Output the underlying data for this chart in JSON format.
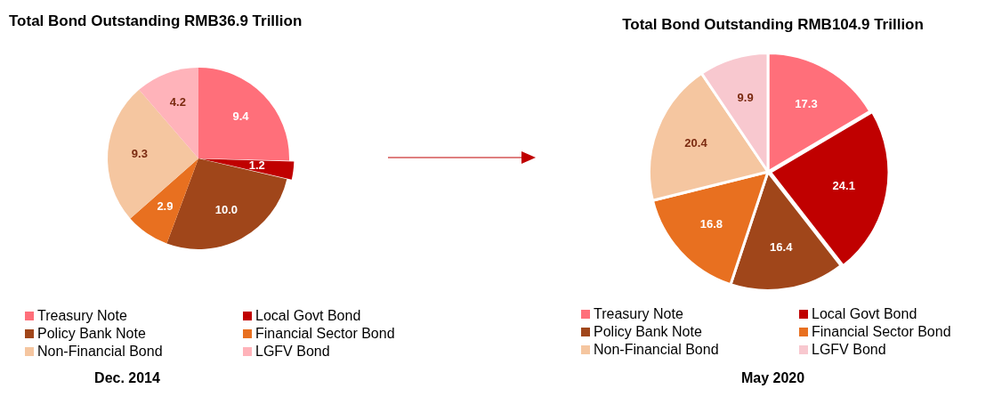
{
  "chart_data": [
    {
      "type": "pie",
      "title": "Total Bond Outstanding RMB36.9 Trillion",
      "categories": [
        "Treasury Note",
        "Local Govt Bond",
        "Policy Bank Note",
        "Financial Sector Bond",
        "Non-Financial Bond",
        "LGFV Bond"
      ],
      "values": [
        9.4,
        1.2,
        10.0,
        2.9,
        9.3,
        4.2
      ],
      "value_labels": [
        "9.4",
        "1.2",
        "10.0",
        "2.9",
        "9.3",
        "4.2"
      ],
      "colors": [
        "#ff6f7a",
        "#c00000",
        "#a0461a",
        "#e87020",
        "#f5c6a0",
        "#ffb3ba"
      ],
      "legend": "bottom",
      "annotations": [
        "Dec. 2014"
      ]
    },
    {
      "type": "pie",
      "title": "Total Bond Outstanding RMB104.9 Trillion",
      "categories": [
        "Treasury Note",
        "Local Govt Bond",
        "Policy Bank Note",
        "Financial Sector Bond",
        "Non-Financial Bond",
        "LGFV Bond"
      ],
      "values": [
        17.3,
        24.1,
        16.4,
        16.8,
        20.4,
        9.9
      ],
      "value_labels": [
        "17.3",
        "24.1",
        "16.4",
        "16.8",
        "20.4",
        "9.9"
      ],
      "colors": [
        "#ff6f7a",
        "#c00000",
        "#a0461a",
        "#e87020",
        "#f5c6a0",
        "#f8c8cf"
      ],
      "legend": "bottom",
      "annotations": [
        "May 2020"
      ]
    }
  ]
}
